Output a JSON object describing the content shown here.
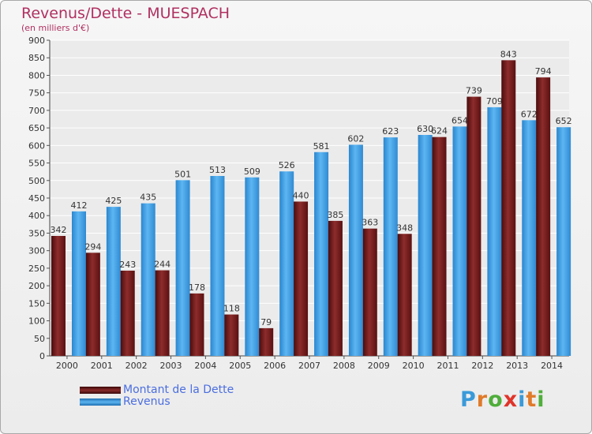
{
  "title": "Revenus/Dette - MUESPACH",
  "subtitle": "(en milliers d'€)",
  "logo": {
    "text": "Proxiti",
    "letters": [
      "P",
      "r",
      "o",
      "x",
      "i",
      "t",
      "i"
    ],
    "colors": [
      "#3a9ad9",
      "#e07b2a",
      "#4fae3b",
      "#e0342a",
      "#3a9ad9",
      "#e07b2a",
      "#4fae3b"
    ]
  },
  "chart_data": {
    "type": "bar",
    "categories": [
      "2000",
      "2001",
      "2002",
      "2003",
      "2004",
      "2005",
      "2006",
      "2007",
      "2008",
      "2009",
      "2010",
      "2011",
      "2012",
      "2013",
      "2014"
    ],
    "series": [
      {
        "name": "Montant de la Dette",
        "values": [
          342,
          294,
          243,
          244,
          178,
          118,
          79,
          440,
          385,
          363,
          348,
          624,
          739,
          843,
          794
        ],
        "color": "#7a1a1a"
      },
      {
        "name": "Revenus",
        "values": [
          412,
          425,
          435,
          501,
          513,
          509,
          526,
          581,
          602,
          623,
          630,
          654,
          709,
          672,
          652
        ],
        "color": "#3d9de0"
      }
    ],
    "ylim": [
      0,
      900
    ],
    "yticks": [
      0,
      50,
      100,
      150,
      200,
      250,
      300,
      350,
      400,
      450,
      500,
      550,
      600,
      650,
      700,
      750,
      800,
      850,
      900
    ],
    "grid": true,
    "legend": "bottom-left"
  }
}
